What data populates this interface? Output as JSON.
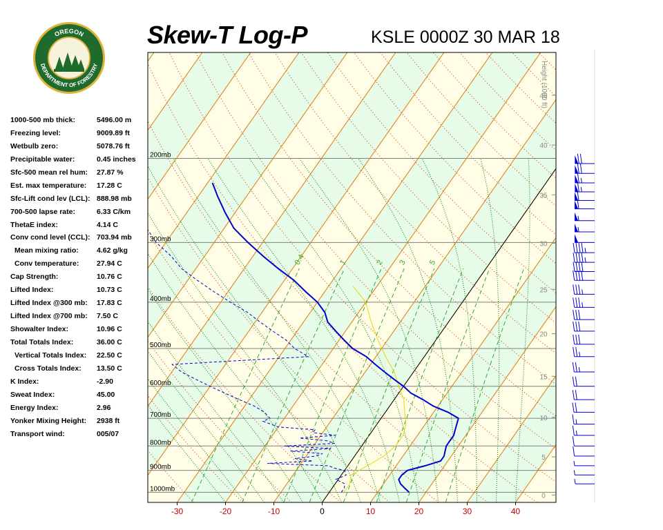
{
  "header": {
    "title": "Skew-T Log-P",
    "station_time": "KSLE 0000Z 30 MAR 18"
  },
  "logo": {
    "top_text": "OREGON",
    "bottom_text": "DEPARTMENT OF FORESTRY",
    "colors": {
      "ring": "#1f6b2e",
      "gold": "#e0b23a"
    }
  },
  "stats": [
    {
      "label": "1000-500 mb thick:",
      "value": "5496.00 m"
    },
    {
      "label": "Freezing level:",
      "value": "9009.89 ft"
    },
    {
      "label": "Wetbulb zero:",
      "value": "5078.76 ft"
    },
    {
      "label": "Precipitable water:",
      "value": "0.45 inches"
    },
    {
      "label": "Sfc-500 mean rel hum:",
      "value": "27.87 %"
    },
    {
      "label": "Est. max temperature:",
      "value": "17.28 C"
    },
    {
      "label": "Sfc-Lift cond lev (LCL):",
      "value": "888.98 mb"
    },
    {
      "label": "700-500 lapse rate:",
      "value": "6.33 C/km"
    },
    {
      "label": "ThetaE index:",
      "value": "4.14 C"
    },
    {
      "label": "Conv cond level (CCL):",
      "value": "703.94 mb"
    },
    {
      "label": "Mean mixing ratio:",
      "value": "4.62 g/kg"
    },
    {
      "label": "Conv temperature:",
      "value": "27.94 C"
    },
    {
      "label": "Cap Strength:",
      "value": "10.76 C"
    },
    {
      "label": "Lifted Index:",
      "value": "10.73 C"
    },
    {
      "label": "Lifted Index @300 mb:",
      "value": "17.83 C"
    },
    {
      "label": "Lifted Index @700 mb:",
      "value": "7.50 C"
    },
    {
      "label": "Showalter Index:",
      "value": "10.96 C"
    },
    {
      "label": "Total Totals Index:",
      "value": "36.00 C"
    },
    {
      "label": "Vertical Totals Index:",
      "value": "22.50 C"
    },
    {
      "label": "Cross Totals Index:",
      "value": "13.50 C"
    },
    {
      "label": "K Index:",
      "value": "-2.90"
    },
    {
      "label": "Sweat Index:",
      "value": "45.00"
    },
    {
      "label": "Energy Index:",
      "value": "2.96"
    },
    {
      "label": "Yonker Mixing Height:",
      "value": "2938 ft"
    },
    {
      "label": "Transport wind:",
      "value": "005/07"
    }
  ],
  "chart_data": {
    "type": "line",
    "title": "Skew-T Log-P",
    "xlabel": "",
    "ylabel": "",
    "x_unit": "C",
    "xlim": [
      -35,
      45
    ],
    "ylim_mb": [
      1050,
      120
    ],
    "log_pressure_axis": true,
    "x_ticks": [
      -30,
      -20,
      -10,
      0,
      10,
      20,
      30,
      40
    ],
    "pressure_levels": [
      200,
      300,
      400,
      500,
      600,
      700,
      800,
      900,
      1000
    ],
    "pressure_label_suffix": "mb",
    "height_axis": {
      "label": "Height (1000 ft)",
      "ticks": [
        0,
        5,
        10,
        15,
        20,
        25,
        30,
        35,
        40,
        45,
        50
      ]
    },
    "mixing_ratio_labels": [
      "0.4",
      "1",
      "2",
      "3",
      "5"
    ],
    "series": [
      {
        "role": "temperature",
        "color": "#0000cc",
        "points": [
          [
            16.5,
            1000
          ],
          [
            15,
            980
          ],
          [
            13.5,
            960
          ],
          [
            12.5,
            940
          ],
          [
            12.5,
            920
          ],
          [
            13,
            900
          ],
          [
            16,
            880
          ],
          [
            18.5,
            860
          ],
          [
            18.5,
            840
          ],
          [
            18,
            820
          ],
          [
            17.5,
            800
          ],
          [
            17.5,
            780
          ],
          [
            17.5,
            760
          ],
          [
            17,
            740
          ],
          [
            16.5,
            720
          ],
          [
            16,
            700
          ],
          [
            13,
            680
          ],
          [
            9,
            660
          ],
          [
            6,
            640
          ],
          [
            2.5,
            620
          ],
          [
            0,
            600
          ],
          [
            -3,
            580
          ],
          [
            -6,
            560
          ],
          [
            -9,
            540
          ],
          [
            -12,
            520
          ],
          [
            -16,
            500
          ],
          [
            -19,
            480
          ],
          [
            -22,
            460
          ],
          [
            -25,
            440
          ],
          [
            -27,
            420
          ],
          [
            -30,
            400
          ],
          [
            -34,
            380
          ],
          [
            -38,
            360
          ],
          [
            -43,
            340
          ],
          [
            -48,
            320
          ],
          [
            -53,
            300
          ],
          [
            -58,
            280
          ],
          [
            -62,
            260
          ],
          [
            -66,
            240
          ],
          [
            -69,
            225
          ]
        ]
      },
      {
        "role": "dewpoint",
        "color": "#0000cc",
        "points": [
          [
            2.5,
            1000
          ],
          [
            2.5,
            980
          ],
          [
            2,
            960
          ],
          [
            -0.5,
            940
          ],
          [
            1,
            920
          ],
          [
            0,
            900
          ],
          [
            -2.5,
            890
          ],
          [
            -4,
            880
          ],
          [
            -17,
            870
          ],
          [
            -8,
            860
          ],
          [
            -12,
            850
          ],
          [
            -8,
            840
          ],
          [
            -7,
            830
          ],
          [
            -14,
            820
          ],
          [
            -6,
            810
          ],
          [
            -16,
            800
          ],
          [
            -6,
            790
          ],
          [
            -8,
            780
          ],
          [
            -14,
            770
          ],
          [
            -7,
            760
          ],
          [
            -12,
            750
          ],
          [
            -12,
            740
          ],
          [
            -20,
            730
          ],
          [
            -22,
            720
          ],
          [
            -24,
            710
          ],
          [
            -23,
            700
          ],
          [
            -25,
            680
          ],
          [
            -28,
            660
          ],
          [
            -32,
            640
          ],
          [
            -36,
            620
          ],
          [
            -40,
            600
          ],
          [
            -44,
            580
          ],
          [
            -48,
            560
          ],
          [
            -51,
            540
          ],
          [
            -24,
            520
          ],
          [
            -28,
            500
          ],
          [
            -31,
            480
          ],
          [
            -35,
            460
          ],
          [
            -39,
            440
          ],
          [
            -43,
            420
          ],
          [
            -48,
            400
          ],
          [
            -53,
            380
          ],
          [
            -58,
            360
          ],
          [
            -63,
            340
          ],
          [
            -67,
            320
          ],
          [
            -72,
            300
          ],
          [
            -76,
            280
          ],
          [
            -78,
            260
          ],
          [
            -82,
            240
          ]
        ]
      }
    ],
    "wind_barbs": [
      {
        "mb": 205,
        "dir": 340,
        "kt": 70
      },
      {
        "mb": 215,
        "dir": 340,
        "kt": 70
      },
      {
        "mb": 225,
        "dir": 340,
        "kt": 65
      },
      {
        "mb": 235,
        "dir": 340,
        "kt": 65
      },
      {
        "mb": 245,
        "dir": 345,
        "kt": 60
      },
      {
        "mb": 255,
        "dir": 345,
        "kt": 60
      },
      {
        "mb": 270,
        "dir": 345,
        "kt": 55
      },
      {
        "mb": 285,
        "dir": 345,
        "kt": 55
      },
      {
        "mb": 300,
        "dir": 345,
        "kt": 50
      },
      {
        "mb": 315,
        "dir": 345,
        "kt": 45
      },
      {
        "mb": 330,
        "dir": 345,
        "kt": 45
      },
      {
        "mb": 345,
        "dir": 345,
        "kt": 40
      },
      {
        "mb": 360,
        "dir": 350,
        "kt": 40
      },
      {
        "mb": 385,
        "dir": 350,
        "kt": 35
      },
      {
        "mb": 410,
        "dir": 350,
        "kt": 35
      },
      {
        "mb": 435,
        "dir": 350,
        "kt": 30
      },
      {
        "mb": 460,
        "dir": 350,
        "kt": 30
      },
      {
        "mb": 490,
        "dir": 350,
        "kt": 30
      },
      {
        "mb": 520,
        "dir": 350,
        "kt": 25
      },
      {
        "mb": 560,
        "dir": 355,
        "kt": 25
      },
      {
        "mb": 600,
        "dir": 355,
        "kt": 20
      },
      {
        "mb": 640,
        "dir": 355,
        "kt": 20
      },
      {
        "mb": 680,
        "dir": 0,
        "kt": 20
      },
      {
        "mb": 720,
        "dir": 0,
        "kt": 15
      },
      {
        "mb": 760,
        "dir": 5,
        "kt": 15
      },
      {
        "mb": 800,
        "dir": 5,
        "kt": 10
      },
      {
        "mb": 840,
        "dir": 10,
        "kt": 10
      },
      {
        "mb": 880,
        "dir": 15,
        "kt": 5
      },
      {
        "mb": 920,
        "dir": 20,
        "kt": 5
      },
      {
        "mb": 960,
        "dir": 30,
        "kt": 5
      }
    ],
    "colors": {
      "band_a": "#fffde6",
      "band_b": "#e6fbe8",
      "isotherm": "#e07a0a",
      "dry_adiabat": "#cc3300",
      "moist_adiabat": "#008000",
      "mixing_ratio": "#33aa33",
      "isobar": "#808080",
      "label_red": "#cc0000",
      "temperature": "#0000cc",
      "dewpoint": "#0000cc",
      "barb": "#0000cc",
      "yellow_trace": "#e8d800"
    }
  }
}
